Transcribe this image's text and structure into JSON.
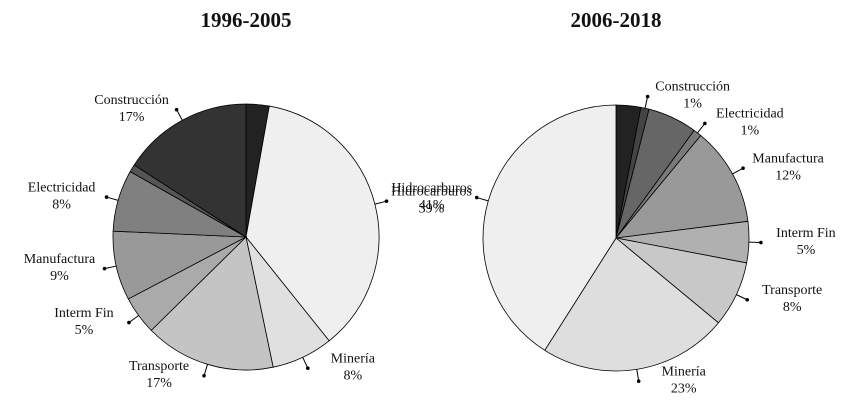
{
  "chart_data": [
    {
      "type": "pie",
      "title": "1996-2005",
      "categories": [
        null,
        "Hidrocarburos",
        "Minería",
        "Transporte",
        "Interm Fin",
        "Manufactura",
        "Electricidad",
        null,
        "Construcción"
      ],
      "values": [
        3,
        39,
        8,
        17,
        5,
        9,
        8,
        1,
        17
      ],
      "value_labels": [
        null,
        "39%",
        "8%",
        "17%",
        "5%",
        "9%",
        "8%",
        null,
        "17%"
      ],
      "colors": [
        "#222222",
        "#efefef",
        "#e0e0e0",
        "#c4c4c4",
        "#aaaaaa",
        "#999999",
        "#808080",
        "#555555",
        "#333333"
      ]
    },
    {
      "type": "pie",
      "title": "2006-2018",
      "categories": [
        null,
        "Construcción",
        null,
        "Electricidad",
        "Manufactura",
        "Interm Fin",
        "Transporte",
        "Minería",
        "Hidrocarburos"
      ],
      "values": [
        3,
        1,
        6,
        1,
        12,
        5,
        8,
        23,
        41
      ],
      "value_labels": [
        null,
        "1%",
        null,
        "1%",
        "12%",
        "5%",
        "8%",
        "23%",
        "41%"
      ],
      "colors": [
        "#222222",
        "#444444",
        "#666666",
        "#7a7a7a",
        "#999999",
        "#b0b0b0",
        "#c8c8c8",
        "#dedede",
        "#efefef"
      ]
    }
  ]
}
